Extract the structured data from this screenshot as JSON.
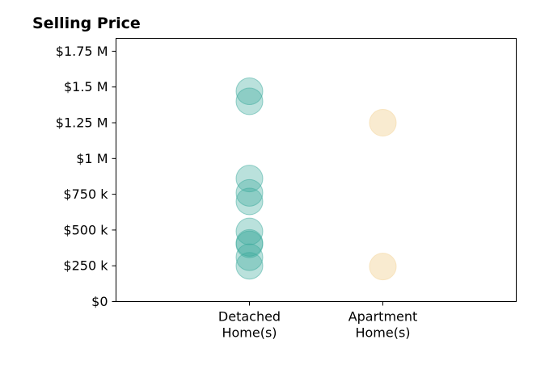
{
  "chart_data": {
    "type": "scatter",
    "title": "Selling Price",
    "xlabel": "",
    "ylabel": "",
    "categories": [
      [
        "Detached",
        "Home(s)"
      ],
      [
        "Apartment",
        "Home(s)"
      ]
    ],
    "xlim": [
      -1,
      2
    ],
    "ylim": [
      0,
      1840000
    ],
    "yticks": [
      0,
      250000,
      500000,
      750000,
      1000000,
      1250000,
      1500000,
      1750000
    ],
    "ytick_labels": [
      "$0",
      "$250 k",
      "$500 k",
      "$750 k",
      "$1 M",
      "$1.25 M",
      "$1.5 M",
      "$1.75 M"
    ],
    "grid": false,
    "series": [
      {
        "category_index": 0,
        "color": "#3aaa9b",
        "opacity": 0.35,
        "values": [
          1470000,
          1400000,
          860000,
          760000,
          700000,
          490000,
          410000,
          400000,
          310000,
          250000
        ]
      },
      {
        "category_index": 1,
        "color": "#f5deb0",
        "opacity": 0.6,
        "values": [
          1250000,
          245000
        ]
      }
    ]
  }
}
